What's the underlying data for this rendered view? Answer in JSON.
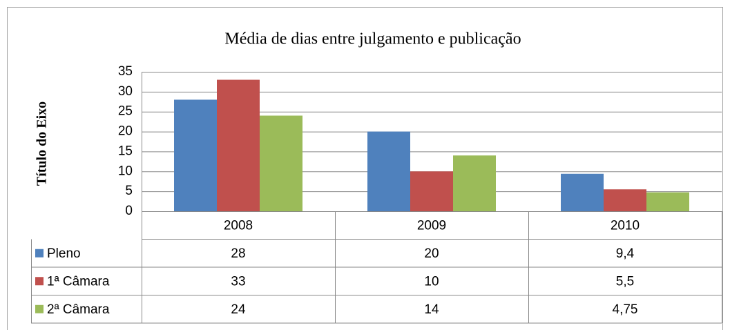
{
  "chart_data": {
    "type": "bar",
    "title": "Média de dias entre julgamento e publicação",
    "ylabel": "Título do Eixo",
    "categories": [
      "2008",
      "2009",
      "2010"
    ],
    "series": [
      {
        "name": "Pleno",
        "color": "#4f81bd",
        "values": [
          28,
          20,
          9.4
        ],
        "value_labels": [
          "28",
          "20",
          "9,4"
        ]
      },
      {
        "name": "1ª Câmara",
        "color": "#c0504d",
        "values": [
          33,
          10,
          5.5
        ],
        "value_labels": [
          "33",
          "10",
          "5,5"
        ]
      },
      {
        "name": "2ª Câmara",
        "color": "#9bbb59",
        "values": [
          24,
          14,
          4.75
        ],
        "value_labels": [
          "24",
          "14",
          "4,75"
        ]
      }
    ],
    "ylim": [
      0,
      35
    ],
    "yticks": [
      0,
      5,
      10,
      15,
      20,
      25,
      30,
      35
    ],
    "grid": true,
    "data_table": true
  }
}
